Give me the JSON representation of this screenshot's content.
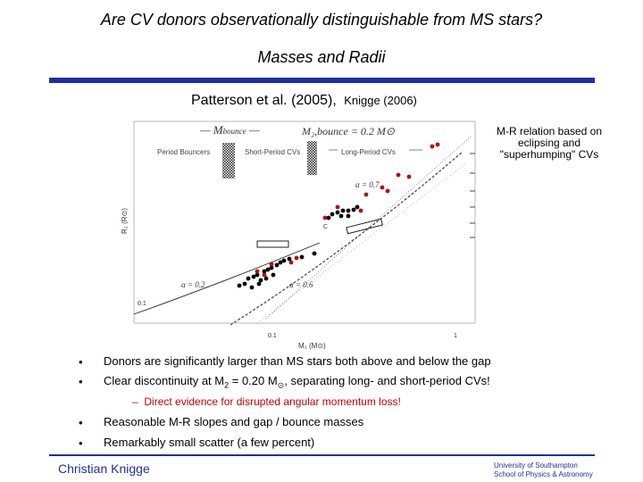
{
  "slide": {
    "title": "Are CV donors observationally distinguishable from MS stars?",
    "subtitle": "Masses and Radii",
    "refs_main": "Patterson et al. (2005),",
    "refs_minor": "Knigge (2006)",
    "note_lines": [
      "M-R relation based on",
      "eclipsing and",
      "\"superhumping\" CVs"
    ]
  },
  "figure": {
    "bounce_label": "M₂,bounce = 0.2 M⊙",
    "label_bouncers": "Period Bouncers",
    "label_short": "Short-Period CVs",
    "label_long": "Long-Period CVs",
    "alpha_top": "α = 0.7",
    "alpha_mid": "α = 0.6",
    "alpha_low": "α = 0.2",
    "ylabel": "R₂ (R⊙)",
    "xlabel": "M₂ (M⊙)",
    "ytick": "0.1",
    "xtick_left": "0.1",
    "xtick_right": "1",
    "point_label": "C",
    "colors": {
      "black_points": "#000000",
      "red_points": "#b01010"
    }
  },
  "bullets": [
    {
      "marker": "•",
      "text": "Donors are significantly larger than MS stars both above and below the gap"
    },
    {
      "marker": "•",
      "text_pre": "Clear discontinuity at M",
      "sub1": "2",
      "text_mid": " = 0.20 M",
      "sub2": "⊙",
      "text_post": ", separating long- and short-period CVs!"
    },
    {
      "marker": "–",
      "text": "Direct evidence for disrupted angular momentum loss!"
    },
    {
      "marker": "•",
      "text": "Reasonable M-R slopes and gap / bounce masses"
    },
    {
      "marker": "•",
      "text": "Remarkably small scatter (a few percent)"
    }
  ],
  "footer": {
    "author": "Christian Knigge",
    "affil1": "University of Southampton",
    "affil2": "School of Physics & Astronomy"
  }
}
